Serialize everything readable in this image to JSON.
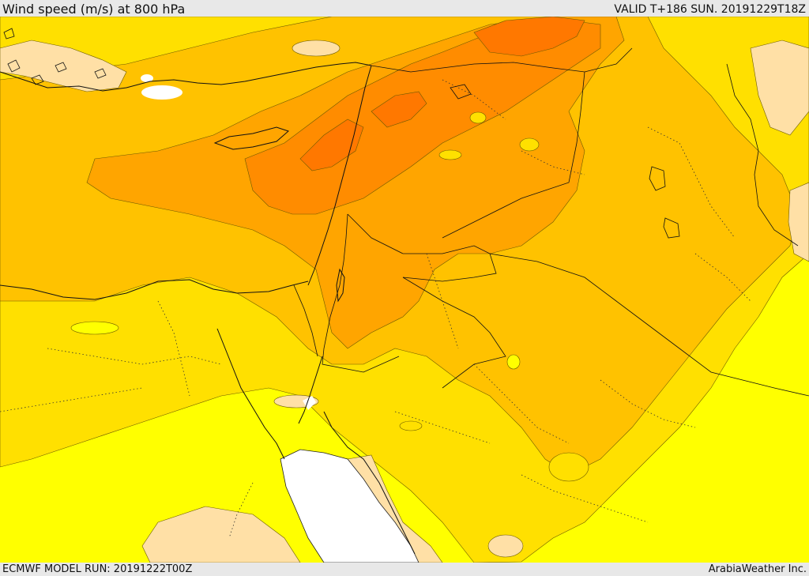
{
  "header": {
    "title": "Wind speed (m/s) at 800 hPa",
    "valid": "VALID T+186 SUN. 20191229T18Z"
  },
  "footer": {
    "model_run": "ECMWF MODEL RUN: 20191222T00Z",
    "credit": "ArabiaWeather Inc."
  },
  "map": {
    "region": "Eastern Mediterranean / Middle East",
    "field": "wind speed",
    "level": "800 hPa",
    "palette": {
      "calm": "#ffffff",
      "light": "#ffe0a6",
      "band1": "#ffff00",
      "band2": "#ffe000",
      "band3": "#ffc200",
      "band4": "#ffa500",
      "band5": "#ff8c00",
      "band6": "#ff7800",
      "sea": "#ffffff"
    }
  }
}
